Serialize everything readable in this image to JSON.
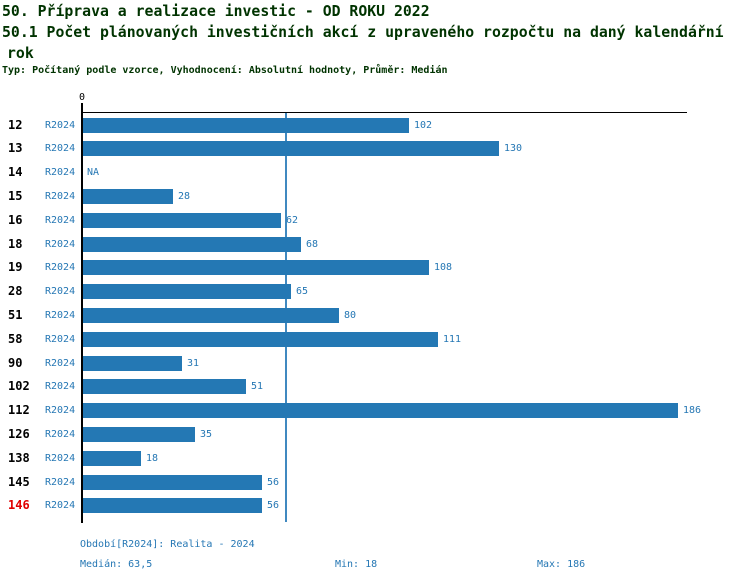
{
  "header": {
    "title_line1": "50. Příprava a realizace investic - OD ROKU 2022",
    "title_line2": "50.1 Počet plánovaných investičních akcí z upraveného rozpočtu na daný kalendářní",
    "title_line3": "rok",
    "subtitle": "Typ: Počítaný podle vzorce, Vyhodnocení: Absolutní hodnoty, Průměr: Medián"
  },
  "chart_data": {
    "type": "bar",
    "orientation": "horizontal",
    "axis_origin_label": "0",
    "series_label": "R2024",
    "categories": [
      "12",
      "13",
      "14",
      "15",
      "16",
      "18",
      "19",
      "28",
      "51",
      "58",
      "90",
      "102",
      "112",
      "126",
      "138",
      "145",
      "146"
    ],
    "values": [
      102,
      130,
      null,
      28,
      62,
      68,
      108,
      65,
      80,
      111,
      31,
      51,
      186,
      35,
      18,
      56,
      56
    ],
    "value_labels": [
      "102",
      "130",
      "NA",
      "28",
      "62",
      "68",
      "108",
      "65",
      "80",
      "111",
      "31",
      "51",
      "186",
      "35",
      "18",
      "56",
      "56"
    ],
    "highlighted_category": "146",
    "median_reference_line": 63.5,
    "xlim": [
      0,
      186
    ],
    "legend_position": "none",
    "grid": "off"
  },
  "footer": {
    "period": "Období[R2024]: Realita - 2024",
    "median": "Medián: 63,5",
    "min": "Min: 18",
    "max": "Max: 186"
  },
  "colors": {
    "bar_blue": "#2478B4",
    "text_blue": "#2577B4",
    "median_blue": "#4089C0",
    "title_green": "#003300",
    "highlight_red": "#E00000"
  }
}
